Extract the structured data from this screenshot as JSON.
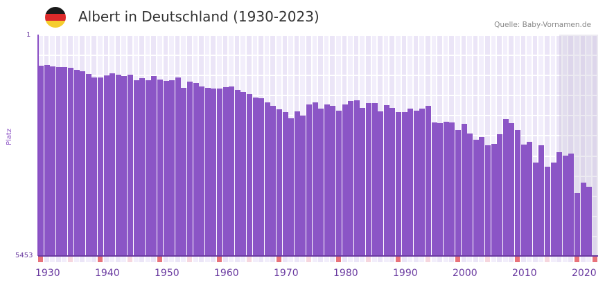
{
  "header": {
    "title": "Albert in Deutschland (1930-2023)",
    "source": "Quelle: Baby-Vornamen.de",
    "flag_colors": [
      "#1a1a1a",
      "#dd2a2a",
      "#f5cd2e"
    ]
  },
  "axes": {
    "y_top": "1",
    "y_bottom": "5453",
    "y_title": "Platz",
    "x_ticks": [
      "1930",
      "1940",
      "1950",
      "1960",
      "1970",
      "1980",
      "1990",
      "2000",
      "2010",
      "2020"
    ]
  },
  "colors": {
    "bar": "#8b55c6",
    "axis": "#6a3aa0",
    "grid_a": "#f2eefb",
    "grid_b": "#ebe5f7",
    "decade_marker": "#e8727a",
    "half_decade_marker": "#f6d6de"
  },
  "chart_data": {
    "type": "bar",
    "title": "Albert in Deutschland (1930-2023)",
    "xlabel": "",
    "ylabel": "Platz",
    "ylim": [
      5453,
      1
    ],
    "y_inverted": true,
    "grid": true,
    "legend": null,
    "categories": [
      1930,
      1931,
      1932,
      1933,
      1934,
      1935,
      1936,
      1937,
      1938,
      1939,
      1940,
      1941,
      1942,
      1943,
      1944,
      1945,
      1946,
      1947,
      1948,
      1949,
      1950,
      1951,
      1952,
      1953,
      1954,
      1955,
      1956,
      1957,
      1958,
      1959,
      1960,
      1961,
      1962,
      1963,
      1964,
      1965,
      1966,
      1967,
      1968,
      1969,
      1970,
      1971,
      1972,
      1973,
      1974,
      1975,
      1976,
      1977,
      1978,
      1979,
      1980,
      1981,
      1982,
      1983,
      1984,
      1985,
      1986,
      1987,
      1988,
      1989,
      1990,
      1991,
      1992,
      1993,
      1994,
      1995,
      1996,
      1997,
      1998,
      1999,
      2000,
      2001,
      2002,
      2003,
      2004,
      2005,
      2006,
      2007,
      2008,
      2009,
      2010,
      2011,
      2012,
      2013,
      2014,
      2015,
      2016,
      2017,
      2018,
      2019,
      2020,
      2021,
      2022
    ],
    "values": [
      768,
      751,
      785,
      802,
      802,
      819,
      870,
      904,
      972,
      1058,
      1058,
      1007,
      956,
      990,
      1024,
      990,
      1126,
      1075,
      1126,
      1024,
      1109,
      1143,
      1126,
      1058,
      1314,
      1160,
      1194,
      1280,
      1314,
      1331,
      1331,
      1297,
      1280,
      1365,
      1416,
      1467,
      1553,
      1570,
      1672,
      1757,
      1842,
      1910,
      2064,
      1893,
      1995,
      1723,
      1672,
      1825,
      1723,
      1757,
      1876,
      1723,
      1638,
      1621,
      1808,
      1689,
      1689,
      1893,
      1740,
      1808,
      1910,
      1910,
      1825,
      1876,
      1825,
      1757,
      2166,
      2183,
      2149,
      2166,
      2353,
      2200,
      2438,
      2592,
      2524,
      2728,
      2694,
      2455,
      2081,
      2183,
      2353,
      2711,
      2643,
      3154,
      2728,
      3256,
      3154,
      2898,
      2983,
      2932,
      3904,
      3648,
      3750
    ],
    "series": [
      {
        "name": "Platz",
        "values_ref": "values"
      }
    ]
  }
}
